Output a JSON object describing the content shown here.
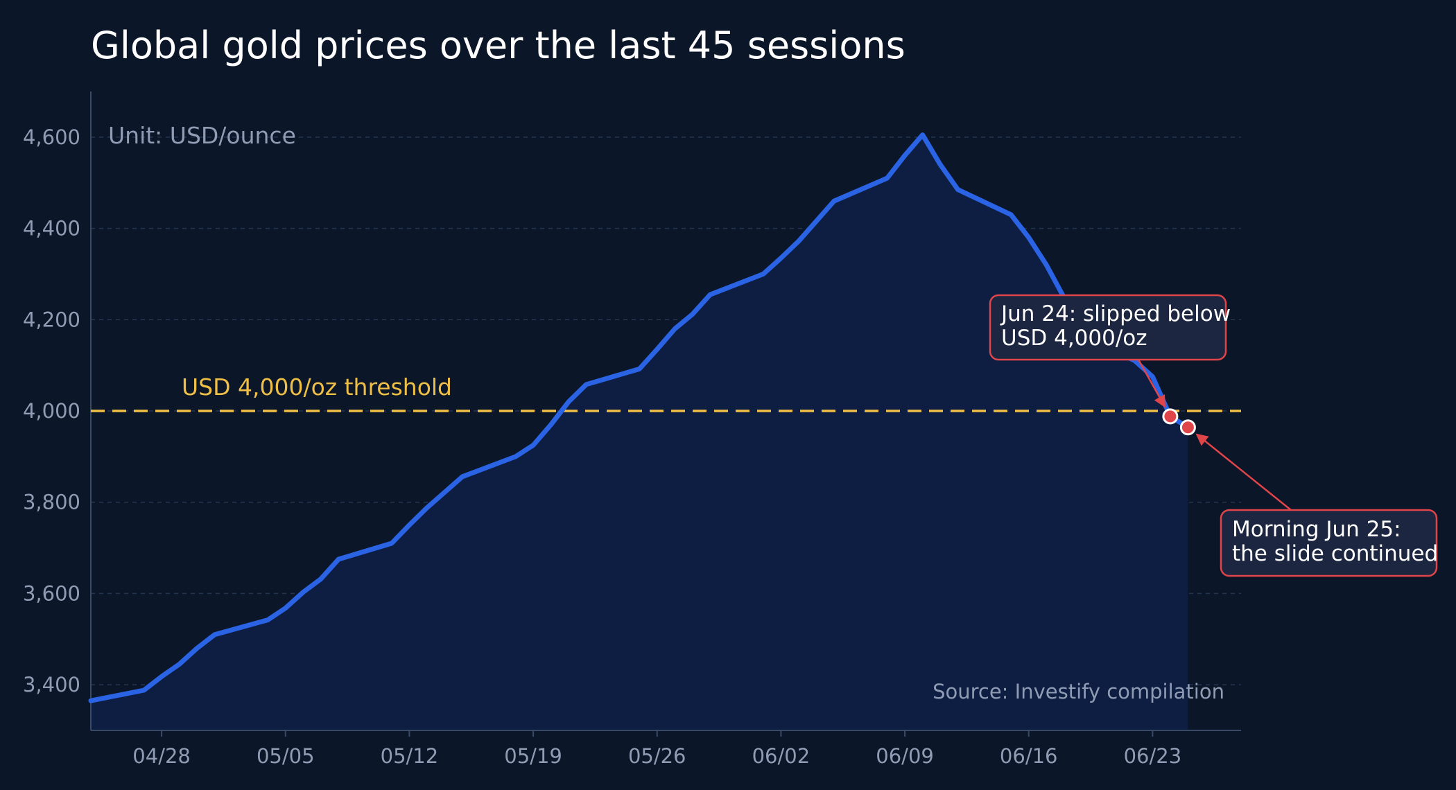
{
  "chart_data": {
    "type": "area",
    "title": "Global gold prices over the last 45 sessions",
    "unit_label": "Unit: USD/ounce",
    "source": "Source: Investify compilation",
    "ylabel": "",
    "xlabel": "",
    "ylim": [
      3300,
      4700
    ],
    "x_range_day_index": [
      -4,
      61
    ],
    "grid": true,
    "y_ticks": [
      3400,
      3600,
      3800,
      4000,
      4200,
      4400,
      4600
    ],
    "y_tick_labels": [
      "3,400",
      "3,600",
      "3,800",
      "4,000",
      "4,200",
      "4,400",
      "4,600"
    ],
    "x_ticks": [
      "2025-04-28",
      "2025-05-05",
      "2025-05-12",
      "2025-05-19",
      "2025-05-26",
      "2025-06-02",
      "2025-06-09",
      "2025-06-16",
      "2025-06-23"
    ],
    "x_tick_labels": [
      "04/28",
      "05/05",
      "05/12",
      "05/19",
      "05/26",
      "06/02",
      "06/09",
      "06/16",
      "06/23"
    ],
    "series": [
      {
        "x": [
          "2025-04-24",
          "2025-04-27",
          "2025-04-28",
          "2025-04-29",
          "2025-04-30",
          "2025-05-01",
          "2025-05-04",
          "2025-05-05",
          "2025-05-06",
          "2025-05-07",
          "2025-05-08",
          "2025-05-11",
          "2025-05-12",
          "2025-05-13",
          "2025-05-15",
          "2025-05-18",
          "2025-05-19",
          "2025-05-20",
          "2025-05-21",
          "2025-05-22",
          "2025-05-25",
          "2025-05-26",
          "2025-05-27",
          "2025-05-28",
          "2025-05-29",
          "2025-06-01",
          "2025-06-02",
          "2025-06-03",
          "2025-06-05",
          "2025-06-08",
          "2025-06-09",
          "2025-06-10",
          "2025-06-11",
          "2025-06-12",
          "2025-06-15",
          "2025-06-16",
          "2025-06-17",
          "2025-06-18",
          "2025-06-19",
          "2025-06-22",
          "2025-06-23",
          "2025-06-24",
          "2025-06-25"
        ],
        "values": [
          3365,
          3388,
          3418,
          3445,
          3480,
          3510,
          3542,
          3568,
          3603,
          3632,
          3675,
          3710,
          3750,
          3788,
          3856,
          3900,
          3925,
          3970,
          4020,
          4058,
          4092,
          4135,
          4180,
          4212,
          4255,
          4300,
          4335,
          4372,
          4460,
          4510,
          4560,
          4605,
          4540,
          4485,
          4430,
          4380,
          4320,
          4248,
          4165,
          4110,
          4075,
          3988,
          3964
        ]
      }
    ],
    "threshold": {
      "value": 4000,
      "label": "USD 4,000/oz threshold"
    },
    "annotations": [
      {
        "date": "2025-06-24",
        "value": 3988,
        "text_line1": "Jun 24: slipped below",
        "text_line2": "USD 4,000/oz"
      },
      {
        "date": "2025-06-25",
        "value": 3964,
        "text_line1": "Morning Jun 25:",
        "text_line2": "the slide continued"
      }
    ],
    "colors": {
      "background": "#0b1628",
      "line": "#2a63e3",
      "area": "#0e1d42",
      "threshold": "#f0bf45",
      "callout_border": "#e0454a",
      "callout_fill": "#1c2640",
      "marker": "#e0454a",
      "grid": "#253450",
      "axis": "#3a4a66"
    }
  }
}
